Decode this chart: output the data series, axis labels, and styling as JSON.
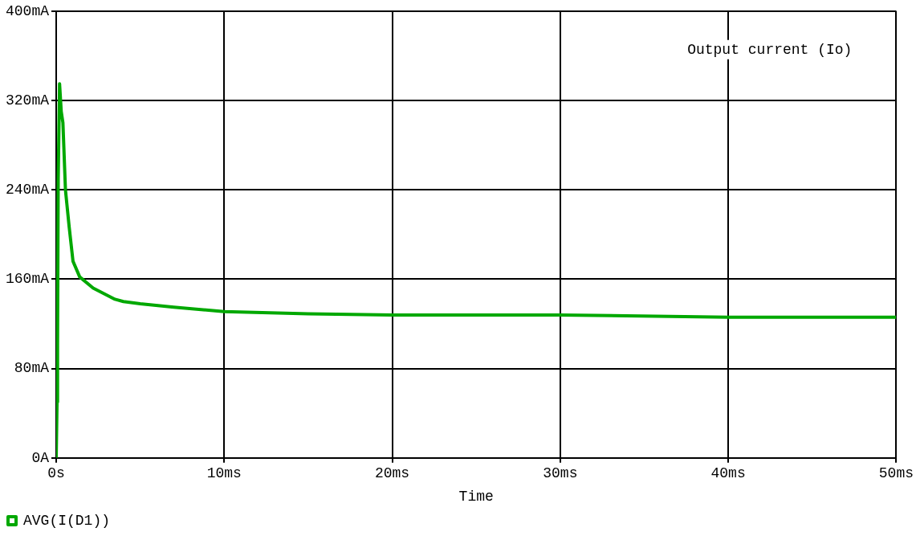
{
  "chart_data": {
    "type": "line",
    "xlabel": "Time",
    "annotations": [
      "Output current (Io)"
    ],
    "x": [
      0,
      0.05,
      0.08,
      0.12,
      0.2,
      0.3,
      0.4,
      0.55,
      0.77,
      1.0,
      1.4,
      2.2,
      3.5,
      4,
      5,
      7,
      10,
      15,
      20,
      30,
      40,
      50
    ],
    "series": [
      {
        "name": "AVG(I(D1))",
        "color": "#00a800",
        "values": [
          0,
          50,
          100,
          250,
          335,
          310,
          300,
          240,
          207,
          176,
          162,
          152,
          142,
          140,
          138,
          135,
          131,
          129,
          128,
          128,
          126,
          126
        ]
      }
    ],
    "xlim": [
      0,
      50
    ],
    "xticks": [
      {
        "value": 0,
        "label": "0s"
      },
      {
        "value": 10,
        "label": "10ms"
      },
      {
        "value": 20,
        "label": "20ms"
      },
      {
        "value": 30,
        "label": "30ms"
      },
      {
        "value": 40,
        "label": "40ms"
      },
      {
        "value": 50,
        "label": "50ms"
      }
    ],
    "ylim": [
      0,
      400
    ],
    "yticks": [
      {
        "value": 0,
        "label": "0A"
      },
      {
        "value": 80,
        "label": "80mA"
      },
      {
        "value": 160,
        "label": "160mA"
      },
      {
        "value": 240,
        "label": "240mA"
      },
      {
        "value": 320,
        "label": "320mA"
      },
      {
        "value": 400,
        "label": "400mA"
      }
    ],
    "grid": true,
    "legend": "bottom left",
    "marker": "none",
    "line_style": "solid"
  }
}
